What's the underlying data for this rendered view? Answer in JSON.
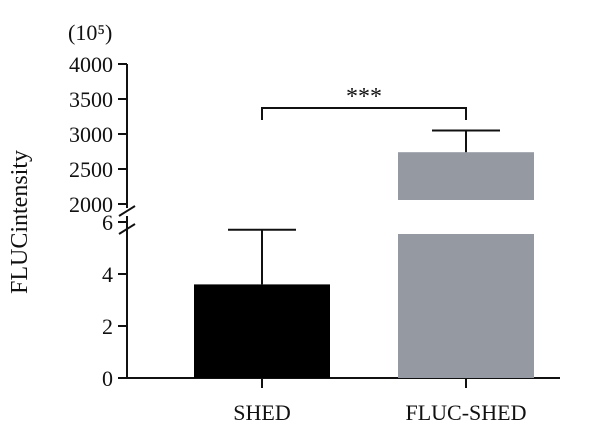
{
  "chart_data": {
    "type": "bar",
    "multiplier_label": "(10⁵)",
    "ylabel": "FLUCintensity",
    "xlabel": "",
    "title": "",
    "categories": [
      "SHED",
      "FLUC-SHED"
    ],
    "values": [
      3.6,
      2740
    ],
    "error_upper": [
      5.7,
      3050
    ],
    "colors": [
      "#000000",
      "#959aa2"
    ],
    "axis_break": {
      "lower_range": [
        0,
        6
      ],
      "upper_range": [
        2000,
        4000
      ]
    },
    "lower_ticks": [
      "0",
      "2",
      "4",
      "6"
    ],
    "upper_ticks": [
      "2000",
      "2500",
      "3000",
      "3500",
      "4000"
    ],
    "significance": {
      "label": "***",
      "between": [
        "SHED",
        "FLUC-SHED"
      ]
    },
    "grid": false,
    "legend": "none"
  }
}
